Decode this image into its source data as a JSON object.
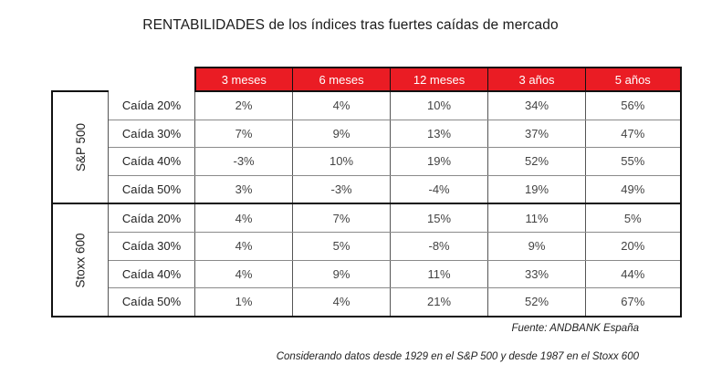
{
  "title": "RENTABILIDADES de los índices tras fuertes caídas de mercado",
  "columns": [
    "3 meses",
    "6 meses",
    "12 meses",
    "3 años",
    "5 años"
  ],
  "groups": [
    {
      "index": "S&P 500",
      "rows": [
        {
          "label": "Caída 20%",
          "values": [
            "2%",
            "4%",
            "10%",
            "34%",
            "56%"
          ]
        },
        {
          "label": "Caída 30%",
          "values": [
            "7%",
            "9%",
            "13%",
            "37%",
            "47%"
          ]
        },
        {
          "label": "Caída 40%",
          "values": [
            "-3%",
            "10%",
            "19%",
            "52%",
            "55%"
          ]
        },
        {
          "label": "Caída 50%",
          "values": [
            "3%",
            "-3%",
            "-4%",
            "19%",
            "49%"
          ]
        }
      ]
    },
    {
      "index": "Stoxx 600",
      "rows": [
        {
          "label": "Caída 20%",
          "values": [
            "4%",
            "7%",
            "15%",
            "11%",
            "5%"
          ]
        },
        {
          "label": "Caída 30%",
          "values": [
            "4%",
            "5%",
            "-8%",
            "9%",
            "20%"
          ]
        },
        {
          "label": "Caída 40%",
          "values": [
            "4%",
            "9%",
            "11%",
            "33%",
            "44%"
          ]
        },
        {
          "label": "Caída 50%",
          "values": [
            "1%",
            "4%",
            "21%",
            "52%",
            "67%"
          ]
        }
      ]
    }
  ],
  "source": "Fuente: ANDBANK España",
  "footnote": "Considerando datos desde 1929 en el S&P 500 y desde 1987 en el Stoxx 600",
  "colors": {
    "header_bg": "#ea1c24",
    "header_text": "#ffffff",
    "border": "#111111"
  }
}
